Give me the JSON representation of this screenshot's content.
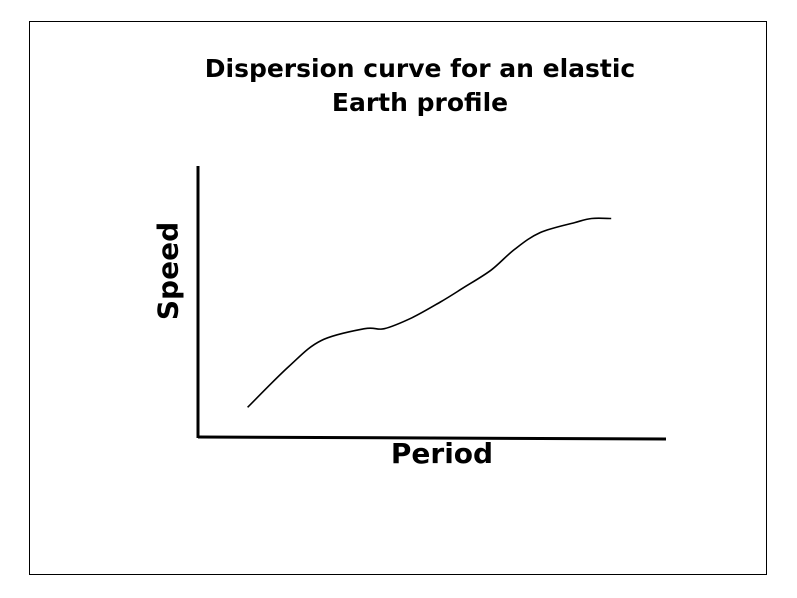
{
  "chart_data": {
    "type": "line",
    "title_lines": [
      "Dispersion curve for an elastic",
      "Earth profile"
    ],
    "xlabel": "Period",
    "ylabel": "Speed",
    "grid": false,
    "legend": "none",
    "xlim": [
      0,
      100
    ],
    "ylim": [
      0,
      100
    ],
    "series": [
      {
        "x": [
          10.6,
          19.4,
          26.3,
          35.6,
          39.8,
          45.7,
          51.8,
          56.6,
          62.6,
          67.6,
          73.1,
          80.5,
          84.1,
          88.3
        ],
        "y": [
          11.3,
          26.3,
          35.8,
          40.2,
          40.2,
          44.2,
          50.0,
          55.1,
          61.7,
          69.3,
          75.5,
          79.2,
          80.7,
          80.7
        ]
      }
    ],
    "colors": {
      "line": "#000000",
      "axis": "#000000"
    }
  }
}
